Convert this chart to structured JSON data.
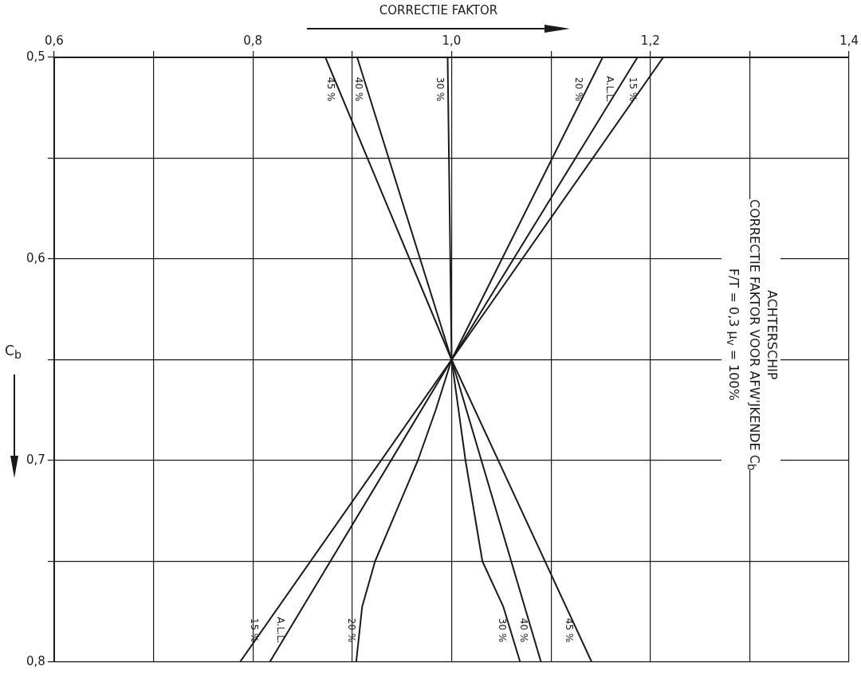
{
  "chart_data": {
    "type": "line",
    "title": "ACHTERSCHIP",
    "subtitle": "CORRECTIE FAKTOR VOOR AFW'JKENDE C$_{b}$",
    "annotations": [
      "F/T = 0,3   μ$_{v}$ = 100%"
    ],
    "xlabel": "CORRECTIE FAKTOR",
    "ylabel": "C$_{b}$",
    "xlim": [
      0.6,
      1.4
    ],
    "ylim": [
      0.8,
      0.5
    ],
    "xticks": [
      {
        "value": 0.6,
        "label": "0,6"
      },
      {
        "value": 0.7,
        "label": null
      },
      {
        "value": 0.8,
        "label": "0,8"
      },
      {
        "value": 0.9,
        "label": null
      },
      {
        "value": 1.0,
        "label": "1,0"
      },
      {
        "value": 1.1,
        "label": null
      },
      {
        "value": 1.2,
        "label": "1,2"
      },
      {
        "value": 1.3,
        "label": null
      },
      {
        "value": 1.4,
        "label": "1,4"
      }
    ],
    "yticks": [
      {
        "value": 0.5,
        "label": "0,5"
      },
      {
        "value": 0.55,
        "label": null
      },
      {
        "value": 0.6,
        "label": "0,6"
      },
      {
        "value": 0.65,
        "label": null
      },
      {
        "value": 0.7,
        "label": "0,7"
      },
      {
        "value": 0.75,
        "label": null
      },
      {
        "value": 0.8,
        "label": "0,8"
      }
    ],
    "grid": true,
    "legend": false,
    "line_style": "solid",
    "series": [
      {
        "name": "45 %",
        "color": "#1a1a1a",
        "x": [
          0.873,
          1.0,
          1.141
        ],
        "values": [
          0.5,
          0.65,
          0.8
        ]
      },
      {
        "name": "40 %",
        "color": "#1a1a1a",
        "x": [
          0.905,
          1.0,
          1.09
        ],
        "values": [
          0.5,
          0.65,
          0.8
        ]
      },
      {
        "name": "30 %",
        "color": "#1a1a1a",
        "x": [
          0.996,
          1.0,
          1.014,
          1.031,
          1.052,
          1.069
        ],
        "values": [
          0.5,
          0.65,
          0.7,
          0.75,
          0.7725,
          0.8
        ]
      },
      {
        "name": "20 %",
        "color": "#1a1a1a",
        "x": [
          1.152,
          1.0,
          0.984,
          0.966,
          0.923,
          0.91,
          0.904
        ],
        "values": [
          0.5,
          0.65,
          0.675,
          0.7,
          0.75,
          0.7725,
          0.8
        ]
      },
      {
        "name": "A.L.L.",
        "color": "#1a1a1a",
        "x": [
          1.187,
          1.0,
          0.817
        ],
        "values": [
          0.5,
          0.65,
          0.8
        ]
      },
      {
        "name": "15 %",
        "color": "#1a1a1a",
        "x": [
          1.213,
          1.0,
          0.787
        ],
        "values": [
          0.5,
          0.65,
          0.8
        ]
      }
    ]
  }
}
